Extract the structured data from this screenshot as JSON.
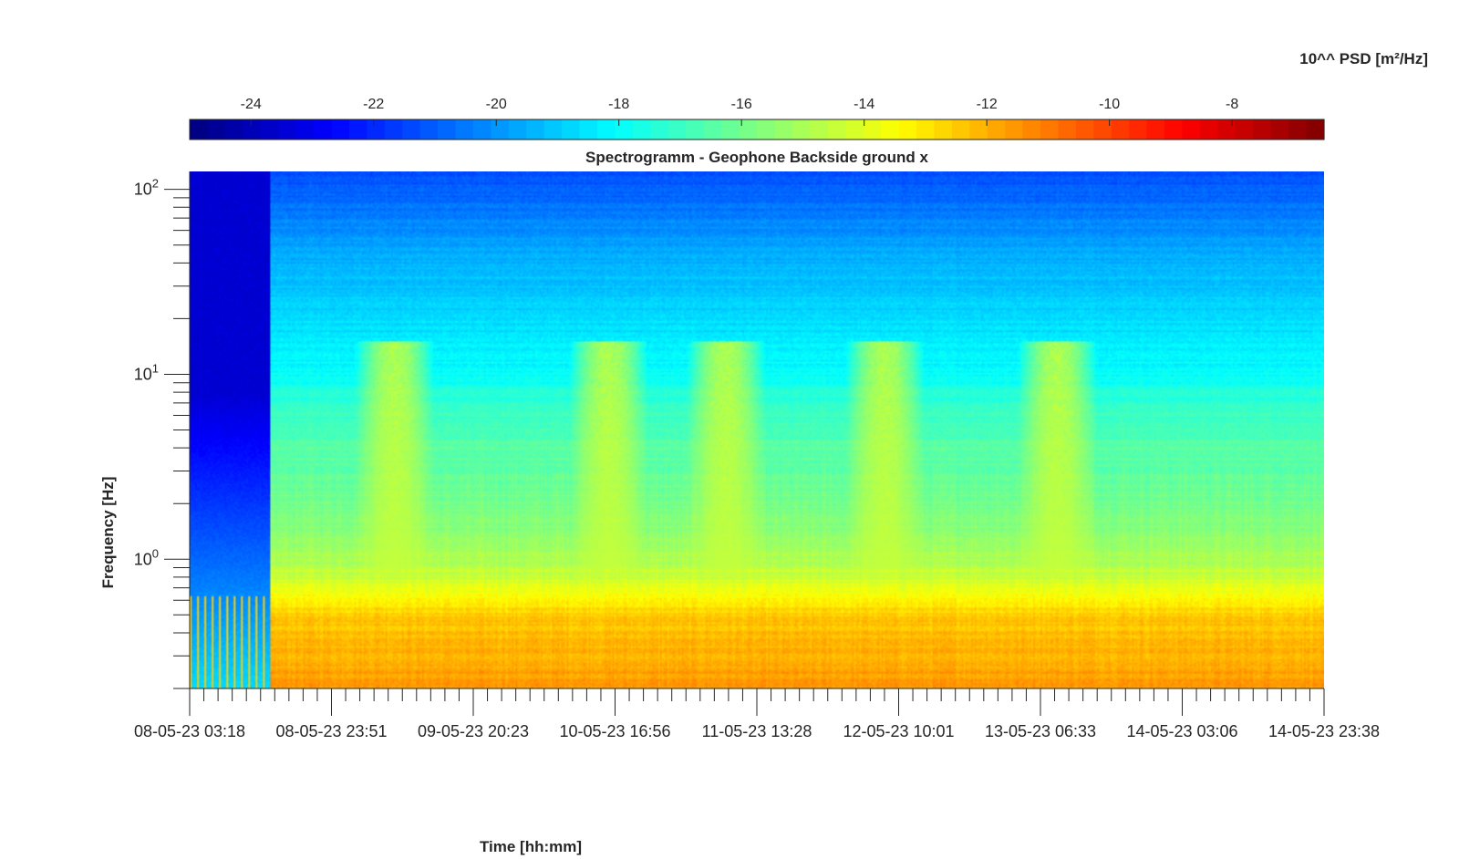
{
  "chart_data": {
    "type": "heatmap",
    "title": "Spectrogramm - Geophone Backside ground x",
    "xlabel": "Time [hh:mm]",
    "ylabel": "Frequency [Hz]",
    "y_scale": "log",
    "ylim": [
      0.2,
      125
    ],
    "y_ticks": [
      {
        "value": 1,
        "base": "10",
        "exp": "0"
      },
      {
        "value": 10,
        "base": "10",
        "exp": "1"
      },
      {
        "value": 100,
        "base": "10",
        "exp": "2"
      }
    ],
    "x_ticks": [
      "08-05-23 03:18",
      "08-05-23 23:51",
      "09-05-23 20:23",
      "10-05-23 16:56",
      "11-05-23 13:28",
      "12-05-23 10:01",
      "13-05-23 06:33",
      "14-05-23 03:06",
      "14-05-23 23:38"
    ],
    "colorbar": {
      "label": "10^^ PSD [m²/Hz]",
      "range": [
        -25,
        -6.5
      ],
      "ticks": [
        "-24",
        "-22",
        "-20",
        "-18",
        "-16",
        "-14",
        "-12",
        "-10",
        "-8"
      ],
      "colormap": "jet",
      "location": "top"
    },
    "psd_profile": [
      {
        "freq_hz": 120,
        "log10_psd": -21.3
      },
      {
        "freq_hz": 80,
        "log10_psd": -20.6
      },
      {
        "freq_hz": 40,
        "log10_psd": -19.4
      },
      {
        "freq_hz": 20,
        "log10_psd": -18.7
      },
      {
        "freq_hz": 10,
        "log10_psd": -18.0
      },
      {
        "freq_hz": 7,
        "log10_psd": -17.2
      },
      {
        "freq_hz": 4,
        "log10_psd": -16.5
      },
      {
        "freq_hz": 2,
        "log10_psd": -16.0
      },
      {
        "freq_hz": 1,
        "log10_psd": -15.0
      },
      {
        "freq_hz": 0.7,
        "log10_psd": -14.0
      },
      {
        "freq_hz": 0.5,
        "log10_psd": -12.5
      },
      {
        "freq_hz": 0.3,
        "log10_psd": -12.0
      },
      {
        "freq_hz": 0.2,
        "log10_psd": -11.5
      }
    ],
    "no_data_period": {
      "start": "08-05-23 03:18",
      "end": "08-05-23 14:55",
      "log10_psd": -23.5
    },
    "activity_bursts": [
      {
        "time": "09-05-23 09:00",
        "freq_range_hz": [
          1,
          15
        ],
        "log10_psd": -14.5
      },
      {
        "time": "10-05-23 16:00",
        "freq_range_hz": [
          1,
          15
        ],
        "log10_psd": -14.5
      },
      {
        "time": "11-05-23 09:00",
        "freq_range_hz": [
          1,
          15
        ],
        "log10_psd": -14.5
      },
      {
        "time": "12-05-23 08:00",
        "freq_range_hz": [
          1,
          15
        ],
        "log10_psd": -14.5
      },
      {
        "time": "13-05-23 09:00",
        "freq_range_hz": [
          1,
          15
        ],
        "log10_psd": -14.5
      }
    ]
  }
}
